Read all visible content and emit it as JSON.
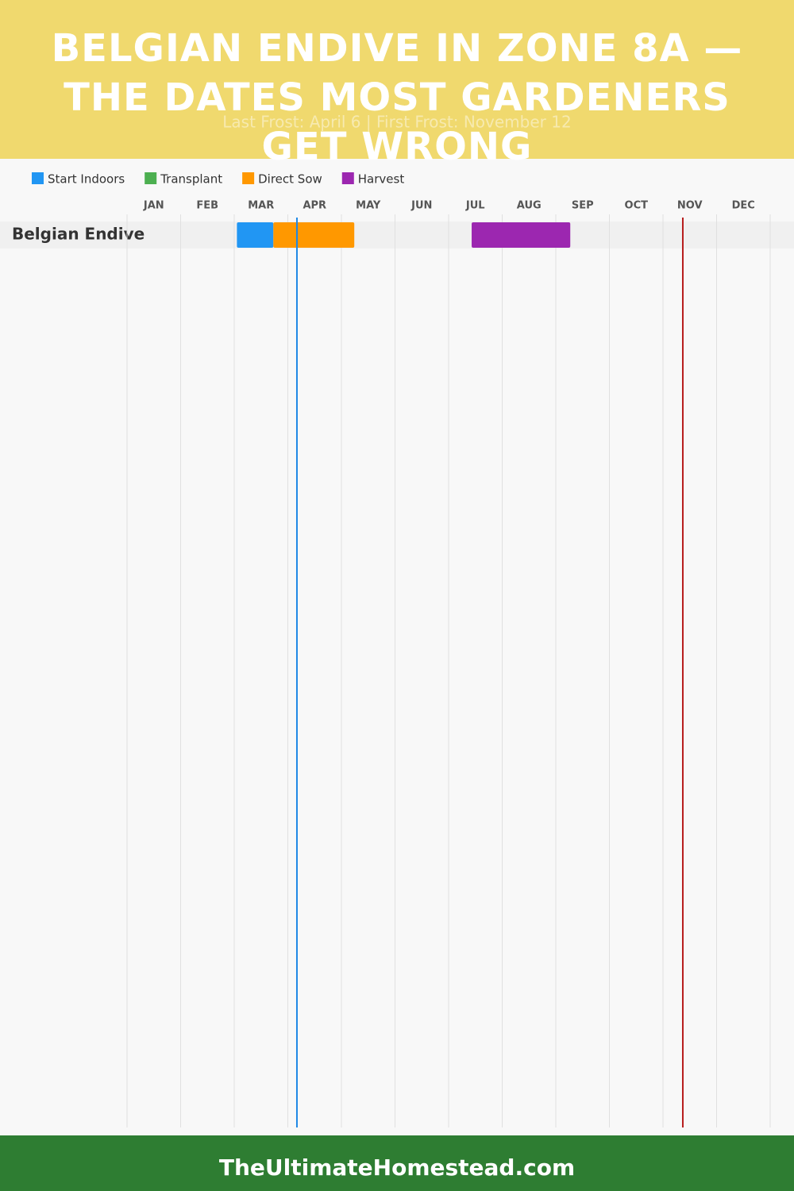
{
  "chart_data": {
    "type": "gantt",
    "title": "BELGIAN ENDIVE IN ZONE 8A — THE DATES MOST GARDENERS GET WRONG",
    "subtitle": "Last Frost: April 6 | First Frost: November 12",
    "footer": "TheUltimateHomestead.com",
    "categories": [
      "Belgian Endive"
    ],
    "xlim": [
      0,
      12
    ],
    "xticks": [
      {
        "value": 0.5,
        "label": "JAN"
      },
      {
        "value": 1.5,
        "label": "FEB"
      },
      {
        "value": 2.5,
        "label": "MAR"
      },
      {
        "value": 3.5,
        "label": "APR"
      },
      {
        "value": 4.5,
        "label": "MAY"
      },
      {
        "value": 5.5,
        "label": "JUN"
      },
      {
        "value": 6.5,
        "label": "JUL"
      },
      {
        "value": 7.5,
        "label": "AUG"
      },
      {
        "value": 8.5,
        "label": "SEP"
      },
      {
        "value": 9.5,
        "label": "OCT"
      },
      {
        "value": 10.5,
        "label": "NOV"
      },
      {
        "value": 11.5,
        "label": "DEC"
      }
    ],
    "xgrid": [
      0,
      1,
      2,
      3,
      4,
      5,
      6,
      7,
      8,
      9,
      10,
      11,
      12
    ],
    "series": [
      {
        "name": "Start Indoors",
        "color": "#2196f3",
        "values": [
          [
            2.05,
            2.73
          ]
        ]
      },
      {
        "name": "Transplant",
        "color": "#4caf50",
        "values": [
          null
        ]
      },
      {
        "name": "Direct Sow",
        "color": "#ff9800",
        "values": [
          [
            2.73,
            4.24
          ]
        ]
      },
      {
        "name": "Harvest",
        "color": "#9c27b0",
        "values": [
          [
            6.43,
            8.27
          ]
        ]
      }
    ],
    "frost_lines": [
      {
        "x": 3.17,
        "color": "#1e88e5"
      },
      {
        "x": 10.37,
        "color": "#b71c1c"
      }
    ]
  }
}
